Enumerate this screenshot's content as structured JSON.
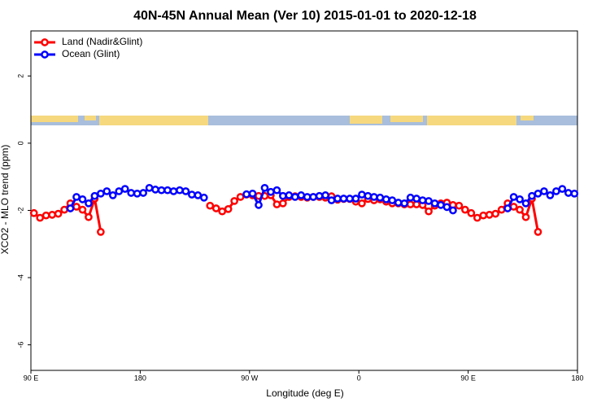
{
  "chart_data": {
    "type": "line",
    "title": "40N-45N Annual Mean (Ver 10)   2015-01-01 to 2020-12-18",
    "xlabel": "Longitude (deg E)",
    "ylabel": "XCO2 - MLO trend (ppm)",
    "xlim": [
      90,
      540
    ],
    "ylim": [
      -6.76,
      3.34
    ],
    "xticks": [
      {
        "value": 90,
        "label": "90 E"
      },
      {
        "value": 180,
        "label": "180"
      },
      {
        "value": 270,
        "label": "90 W"
      },
      {
        "value": 360,
        "label": "0"
      },
      {
        "value": 450,
        "label": "90 E"
      },
      {
        "value": 540,
        "label": "180"
      }
    ],
    "yticks": [
      -6,
      -4,
      -2,
      0,
      2
    ],
    "legend": "top-left",
    "x": [
      92.5,
      97.5,
      102.5,
      107.5,
      112.5,
      117.5,
      122.5,
      127.5,
      132.5,
      137.5,
      142.5,
      147.5,
      152.5,
      157.5,
      162.5,
      167.5,
      172.5,
      177.5,
      182.5,
      187.5,
      192.5,
      197.5,
      202.5,
      207.5,
      212.5,
      217.5,
      222.5,
      227.5,
      232.5,
      237.5,
      242.5,
      247.5,
      252.5,
      257.5,
      262.5,
      267.5,
      272.5,
      277.5,
      282.5,
      287.5,
      292.5,
      297.5,
      302.5,
      307.5,
      312.5,
      317.5,
      322.5,
      327.5,
      332.5,
      337.5,
      342.5,
      347.5,
      352.5,
      357.5,
      362.5,
      367.5,
      372.5,
      377.5,
      382.5,
      387.5,
      392.5,
      397.5,
      402.5,
      407.5,
      412.5,
      417.5,
      422.5,
      427.5,
      432.5,
      437.5,
      442.5,
      447.5,
      452.5,
      457.5,
      462.5,
      467.5,
      472.5,
      477.5,
      482.5,
      487.5,
      492.5,
      497.5,
      502.5,
      507.5,
      512.5,
      517.5,
      522.5,
      527.5,
      532.5,
      537.5
    ],
    "series": [
      {
        "name": "Land (Nadir&Glint)",
        "color": "#ff0000",
        "values": [
          -2.08,
          -2.22,
          -2.15,
          -2.13,
          -2.1,
          -1.98,
          -1.79,
          -1.89,
          -1.98,
          -2.2,
          -1.65,
          -2.64,
          null,
          null,
          null,
          null,
          null,
          null,
          null,
          null,
          null,
          null,
          null,
          null,
          null,
          null,
          null,
          null,
          null,
          -1.86,
          -1.94,
          -2.03,
          -1.96,
          -1.72,
          -1.6,
          -1.53,
          -1.55,
          -1.57,
          -1.57,
          -1.55,
          -1.82,
          -1.79,
          -1.6,
          -1.58,
          -1.6,
          -1.62,
          -1.6,
          -1.6,
          -1.62,
          -1.58,
          -1.68,
          -1.66,
          -1.66,
          -1.74,
          -1.79,
          -1.66,
          -1.7,
          -1.67,
          -1.74,
          -1.79,
          -1.79,
          -1.82,
          -1.82,
          -1.82,
          -1.84,
          -2.03,
          -1.86,
          -1.79,
          -1.77,
          -1.84,
          -1.86,
          -1.98,
          -2.08,
          -2.22,
          -2.15,
          -2.13,
          -2.1,
          -1.98,
          -1.79,
          -1.89,
          -1.98,
          -2.2,
          -1.65,
          -2.64,
          null,
          null,
          null,
          null,
          null,
          null
        ]
      },
      {
        "name": "Ocean (Glint)",
        "color": "#0000ff",
        "values": [
          null,
          null,
          null,
          null,
          null,
          null,
          -1.94,
          -1.6,
          -1.67,
          -1.79,
          -1.57,
          -1.5,
          -1.43,
          -1.55,
          -1.43,
          -1.36,
          -1.48,
          -1.5,
          -1.48,
          -1.33,
          -1.38,
          -1.4,
          -1.4,
          -1.43,
          -1.4,
          -1.43,
          -1.53,
          -1.55,
          -1.62,
          null,
          null,
          null,
          null,
          null,
          null,
          -1.52,
          -1.5,
          -1.84,
          -1.33,
          -1.45,
          -1.4,
          -1.57,
          -1.55,
          -1.6,
          -1.55,
          -1.6,
          -1.6,
          -1.57,
          -1.55,
          -1.7,
          -1.65,
          -1.65,
          -1.65,
          -1.65,
          -1.53,
          -1.57,
          -1.6,
          -1.62,
          -1.67,
          -1.7,
          -1.77,
          -1.79,
          -1.62,
          -1.65,
          -1.7,
          -1.72,
          -1.79,
          -1.84,
          -1.9,
          -2.0,
          null,
          null,
          null,
          null,
          null,
          null,
          null,
          null,
          -1.94,
          -1.6,
          -1.67,
          -1.79,
          -1.57,
          -1.5,
          -1.43,
          -1.55,
          -1.43,
          -1.36,
          -1.48,
          -1.5
        ]
      }
    ]
  }
}
